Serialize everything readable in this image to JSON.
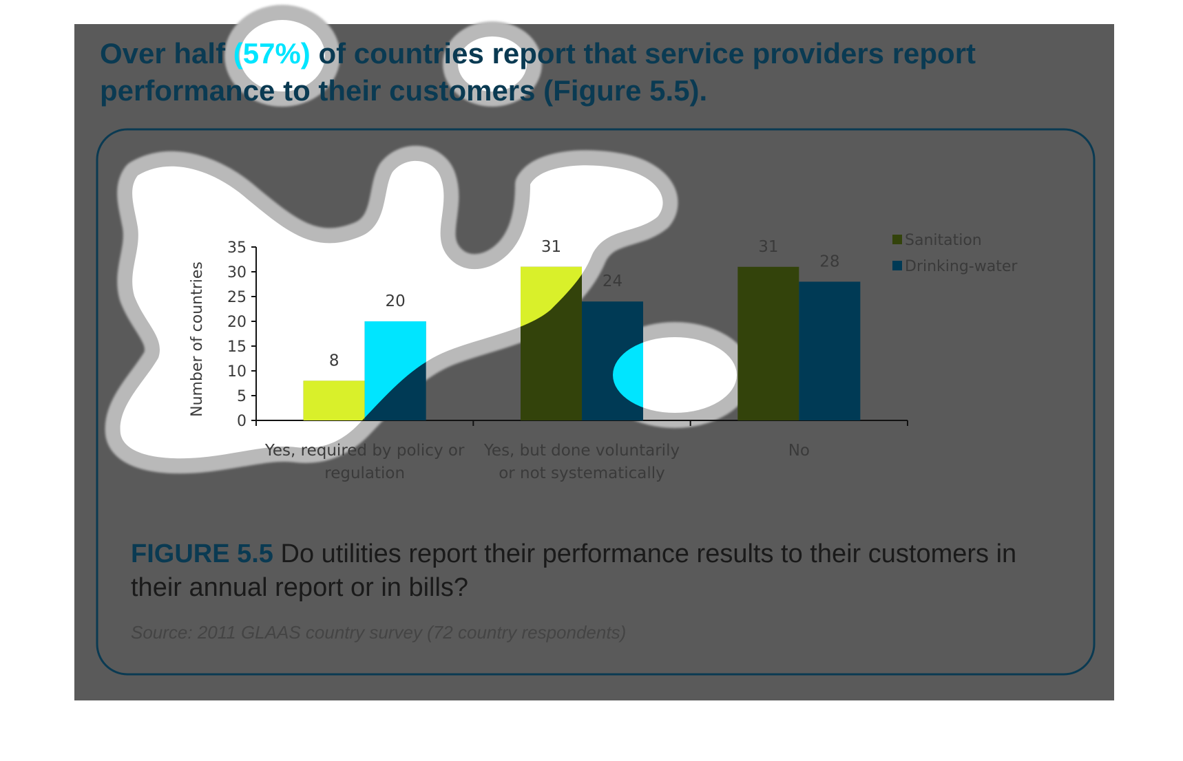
{
  "heading": {
    "line1_prefix": "Over half ",
    "line1_highlight": "(57%)",
    "line1_suffix": " of countries report that service providers report",
    "line2": "performance to their customers (Figure 5.5)."
  },
  "figure": {
    "label": "FIGURE 5.5",
    "caption_line1": " Do utilities report their performance results to their customers in",
    "caption_line2": "their annual report or in bills?",
    "source": "Source: 2011 GLAAS country survey (72 country respondents)"
  },
  "colors": {
    "page_background": "#ffffff",
    "dim_background": "#5a5a5a",
    "sanitation": "#d9f02a",
    "drinking_water": "#00e5ff",
    "sanitation_dimmed": "#33430b",
    "drinking_water_dimmed": "#003a55",
    "accent_navy": "#0a3a52"
  },
  "chart_data": {
    "type": "bar",
    "title": "",
    "xlabel": "",
    "ylabel": "Number of countries",
    "ylim": [
      0,
      35
    ],
    "yticks": [
      0,
      5,
      10,
      15,
      20,
      25,
      30,
      35
    ],
    "grid": false,
    "legend_position": "top-right",
    "categories": [
      [
        "Yes, required by policy or",
        "regulation"
      ],
      [
        "Yes, but done voluntarily",
        "or not systematically"
      ],
      [
        "No"
      ]
    ],
    "series": [
      {
        "name": "Sanitation",
        "values": [
          8,
          31,
          31
        ]
      },
      {
        "name": "Drinking-water",
        "values": [
          20,
          24,
          28
        ]
      }
    ]
  }
}
